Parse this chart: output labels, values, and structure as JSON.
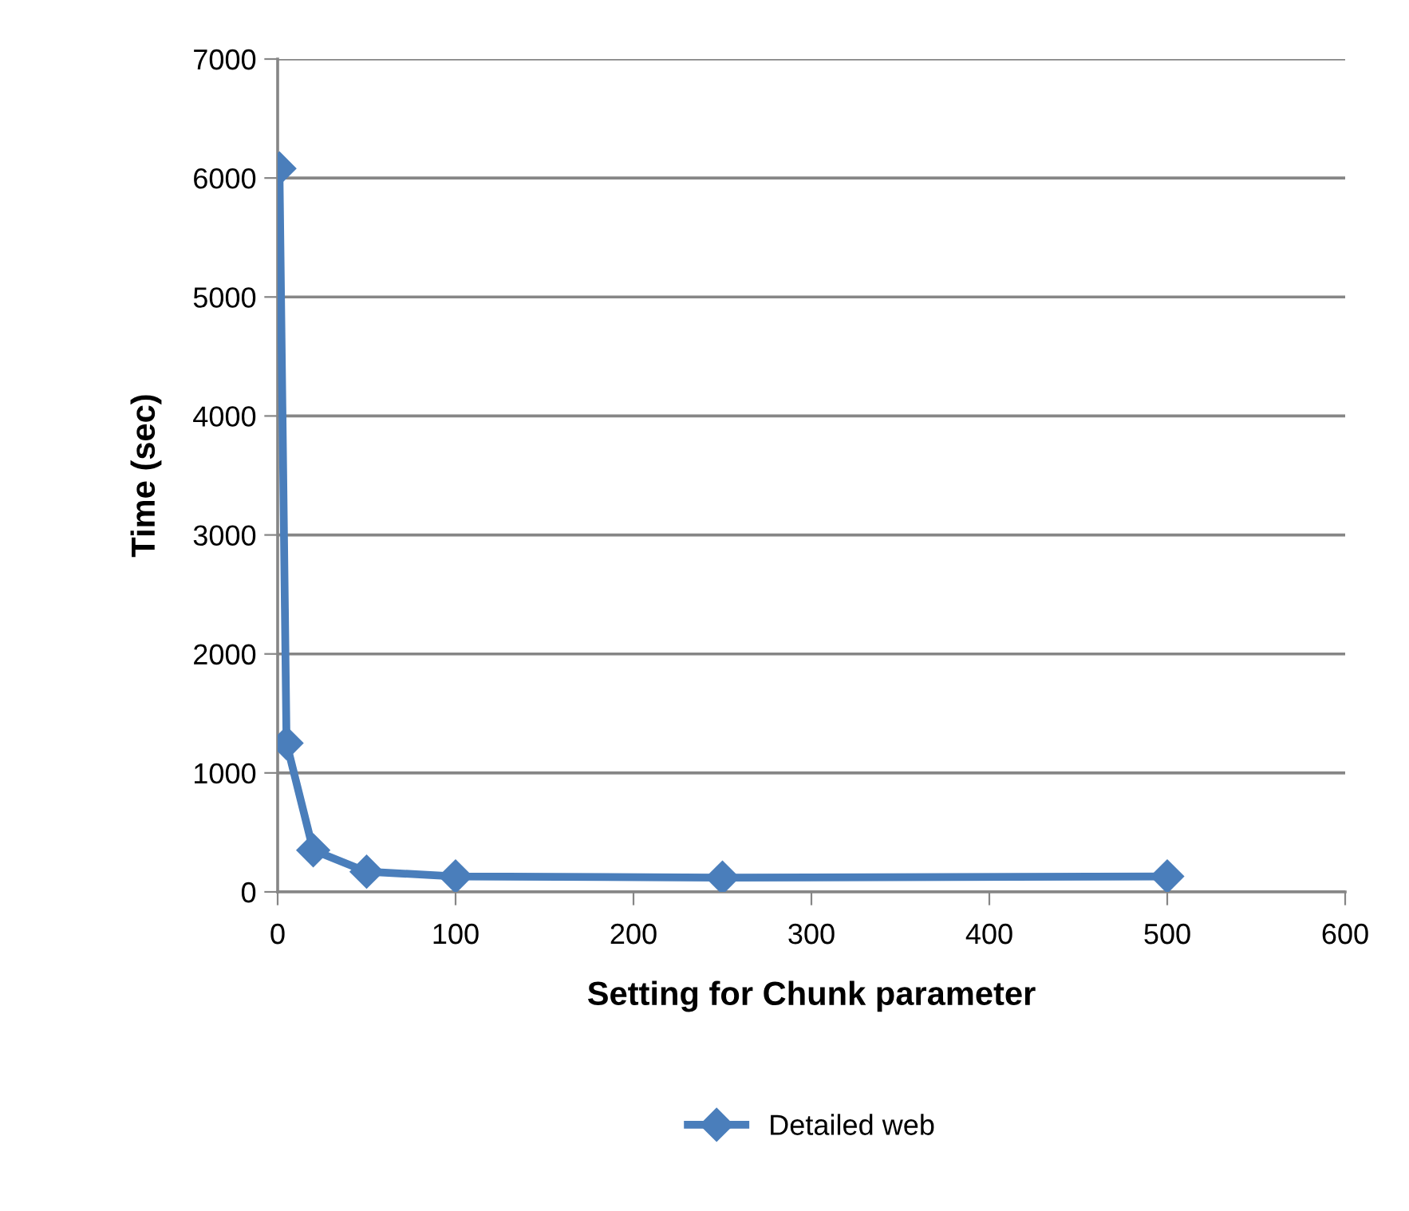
{
  "chart_data": {
    "type": "line",
    "xlabel": "Setting for Chunk parameter",
    "ylabel": "Time (sec)",
    "x": [
      1,
      5,
      20,
      50,
      100,
      250,
      500
    ],
    "series": [
      {
        "name": "Detailed web",
        "color": "#4a7ebb",
        "values": [
          6080,
          1250,
          350,
          170,
          130,
          120,
          130
        ]
      }
    ],
    "xlim": [
      0,
      600
    ],
    "xticks": [
      0,
      100,
      200,
      300,
      400,
      500,
      600
    ],
    "ylim": [
      0,
      7000
    ],
    "yticks": [
      0,
      1000,
      2000,
      3000,
      4000,
      5000,
      6000,
      7000
    ],
    "grid": "y",
    "legend": "bottom",
    "marker": "diamond",
    "line_style": "solid"
  }
}
